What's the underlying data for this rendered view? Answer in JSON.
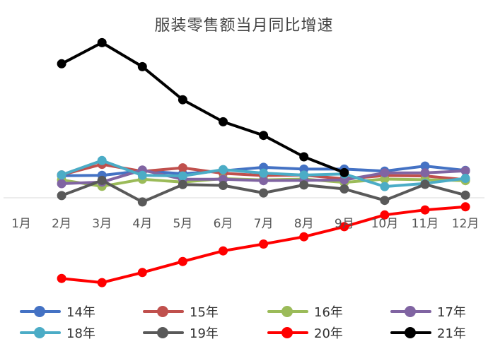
{
  "chart_data": {
    "type": "line",
    "title": "服装零售额当月同比增速",
    "xlabel": "",
    "ylabel": "",
    "categories": [
      "1月",
      "2月",
      "3月",
      "4月",
      "5月",
      "6月",
      "7月",
      "8月",
      "9月",
      "10月",
      "11月",
      "12月"
    ],
    "ylim": [
      -50,
      70
    ],
    "zero_line": true,
    "y_axis_shown": false,
    "grid": false,
    "legend_position": "bottom",
    "series": [
      {
        "name": "14年",
        "color": "#4472C4",
        "values": [
          null,
          10.0,
          10.2,
          12.2,
          10.9,
          12.2,
          13.8,
          13.0,
          13.0,
          12.1,
          14.4,
          12.4
        ]
      },
      {
        "name": "15年",
        "color": "#C0504D",
        "values": [
          null,
          10.4,
          15.2,
          12.0,
          13.6,
          11.1,
          10.1,
          10.3,
          8.6,
          10.1,
          9.9,
          8.2
        ]
      },
      {
        "name": "16年",
        "color": "#9BBB59",
        "values": [
          null,
          8.1,
          5.2,
          8.4,
          7.1,
          8.7,
          8.1,
          8.5,
          7.0,
          8.5,
          8.2,
          7.8
        ]
      },
      {
        "name": "17年",
        "color": "#8064A2",
        "values": [
          null,
          6.4,
          7.1,
          12.6,
          8.4,
          8.4,
          7.8,
          7.9,
          8.1,
          11.3,
          11.3,
          12.2
        ]
      },
      {
        "name": "18年",
        "color": "#4BACC6",
        "values": [
          null,
          10.4,
          16.9,
          10.2,
          9.9,
          12.8,
          11.2,
          10.3,
          10.8,
          5.1,
          6.5,
          8.8
        ]
      },
      {
        "name": "19年",
        "color": "#595959",
        "values": [
          null,
          1.0,
          7.9,
          -1.9,
          6.0,
          5.6,
          2.2,
          5.8,
          4.0,
          -1.2,
          6.1,
          1.2
        ]
      },
      {
        "name": "20年",
        "color": "#FF0000",
        "values": [
          null,
          -36.6,
          -38.5,
          -33.9,
          -28.9,
          -24.1,
          -21.0,
          -17.7,
          -13.1,
          -7.8,
          -5.5,
          -4.1
        ]
      },
      {
        "name": "21年",
        "color": "#000000",
        "values": [
          null,
          60.8,
          70.4,
          59.5,
          44.5,
          34.5,
          28.3,
          18.6,
          11.4,
          null,
          null,
          null
        ]
      }
    ]
  }
}
